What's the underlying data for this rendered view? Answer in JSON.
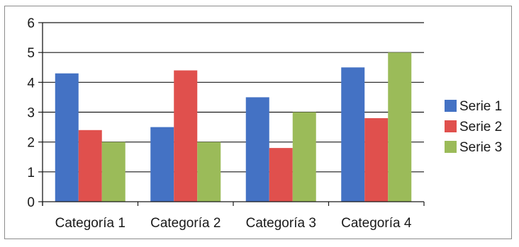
{
  "chart_data": {
    "type": "bar",
    "title": "",
    "xlabel": "",
    "ylabel": "",
    "categories": [
      "Categoría 1",
      "Categoría 2",
      "Categoría 3",
      "Categoría 4"
    ],
    "series": [
      {
        "name": "Serie 1",
        "color": "#4472C4",
        "values": [
          4.3,
          2.5,
          3.5,
          4.5
        ]
      },
      {
        "name": "Serie 2",
        "color": "#E0504D",
        "values": [
          2.4,
          4.4,
          1.8,
          2.8
        ]
      },
      {
        "name": "Serie 3",
        "color": "#9BBB59",
        "values": [
          2.0,
          2.0,
          3.0,
          5.0
        ]
      }
    ],
    "ylim": [
      0,
      6
    ],
    "yticks": [
      "0",
      "1",
      "2",
      "3",
      "4",
      "5",
      "6"
    ],
    "grid": true,
    "legend": "right"
  }
}
